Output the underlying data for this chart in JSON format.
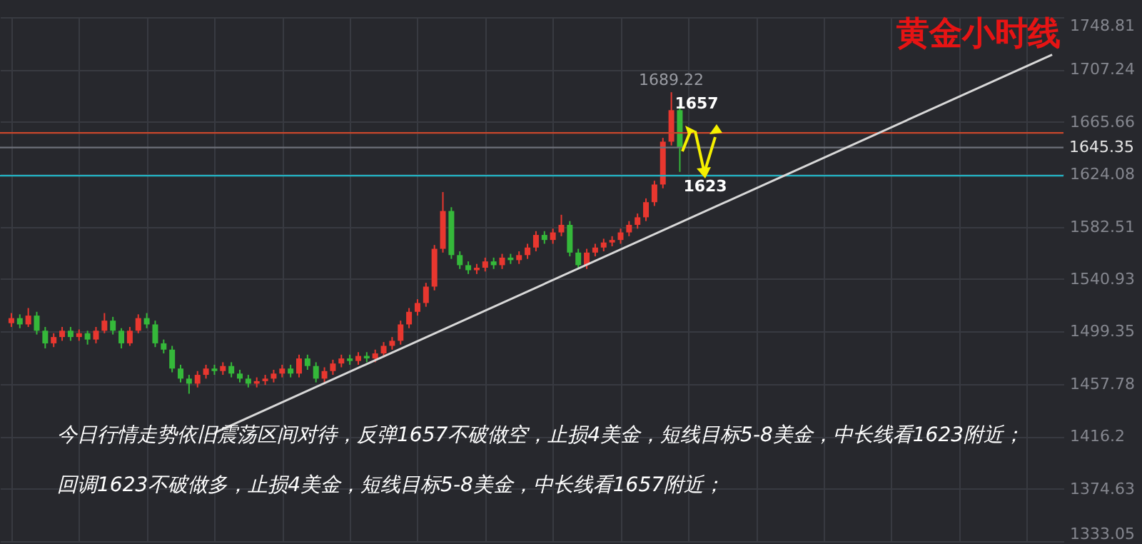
{
  "chart_data": {
    "type": "candlestick",
    "title": "黄金小时线",
    "categories": [
      null,
      null,
      null,
      null,
      null,
      null,
      null,
      null,
      null,
      null,
      null,
      null,
      null,
      null,
      null,
      null,
      null,
      null,
      null,
      null,
      null,
      null,
      null,
      null,
      null,
      null,
      null,
      null,
      null,
      null,
      null,
      null,
      null,
      null,
      null,
      null,
      null,
      null,
      null,
      null,
      null,
      null,
      null,
      null,
      null,
      null,
      null,
      null,
      null,
      null,
      null,
      null,
      null,
      null,
      null,
      null,
      null,
      null,
      null,
      null,
      null,
      null,
      null,
      null,
      null,
      null,
      null,
      null,
      null,
      null,
      null,
      null,
      null,
      null,
      null,
      null,
      null,
      null,
      null,
      null,
      null,
      null,
      null,
      null,
      null,
      null,
      null,
      null,
      null,
      null,
      null,
      null,
      null,
      null,
      null,
      null,
      null,
      null,
      null,
      null,
      null,
      null,
      null,
      null,
      null,
      null,
      null,
      null,
      null,
      null,
      null,
      null,
      null,
      null,
      null,
      null,
      null,
      null,
      null,
      null,
      null,
      null,
      null,
      null
    ],
    "ohlc": [
      [
        1506,
        1514,
        1503,
        1510
      ],
      [
        1510,
        1513,
        1502,
        1505
      ],
      [
        1505,
        1518,
        1503,
        1512
      ],
      [
        1512,
        1515,
        1497,
        1500
      ],
      [
        1500,
        1503,
        1486,
        1490
      ],
      [
        1490,
        1498,
        1487,
        1495
      ],
      [
        1495,
        1503,
        1492,
        1500
      ],
      [
        1500,
        1503,
        1492,
        1495
      ],
      [
        1495,
        1501,
        1492,
        1498
      ],
      [
        1498,
        1500,
        1489,
        1493
      ],
      [
        1493,
        1503,
        1490,
        1500
      ],
      [
        1500,
        1514,
        1498,
        1508
      ],
      [
        1508,
        1511,
        1497,
        1500
      ],
      [
        1500,
        1502,
        1486,
        1490
      ],
      [
        1490,
        1503,
        1488,
        1500
      ],
      [
        1500,
        1513,
        1498,
        1510
      ],
      [
        1510,
        1514,
        1502,
        1505
      ],
      [
        1505,
        1508,
        1487,
        1490
      ],
      [
        1490,
        1493,
        1482,
        1485
      ],
      [
        1485,
        1488,
        1467,
        1470
      ],
      [
        1470,
        1473,
        1459,
        1462
      ],
      [
        1462,
        1465,
        1450,
        1458
      ],
      [
        1458,
        1468,
        1455,
        1465
      ],
      [
        1465,
        1473,
        1462,
        1470
      ],
      [
        1470,
        1473,
        1465,
        1468
      ],
      [
        1468,
        1475,
        1465,
        1472
      ],
      [
        1472,
        1475,
        1463,
        1466
      ],
      [
        1466,
        1469,
        1459,
        1462
      ],
      [
        1462,
        1465,
        1455,
        1458
      ],
      [
        1458,
        1463,
        1455,
        1460
      ],
      [
        1460,
        1465,
        1457,
        1462
      ],
      [
        1462,
        1469,
        1459,
        1466
      ],
      [
        1466,
        1473,
        1463,
        1470
      ],
      [
        1470,
        1473,
        1463,
        1466
      ],
      [
        1466,
        1481,
        1463,
        1478
      ],
      [
        1478,
        1481,
        1469,
        1472
      ],
      [
        1472,
        1475,
        1459,
        1462
      ],
      [
        1462,
        1471,
        1459,
        1468
      ],
      [
        1468,
        1477,
        1465,
        1474
      ],
      [
        1474,
        1481,
        1471,
        1478
      ],
      [
        1478,
        1481,
        1473,
        1476
      ],
      [
        1476,
        1483,
        1473,
        1480
      ],
      [
        1480,
        1483,
        1475,
        1478
      ],
      [
        1478,
        1485,
        1475,
        1482
      ],
      [
        1482,
        1491,
        1479,
        1488
      ],
      [
        1488,
        1495,
        1485,
        1492
      ],
      [
        1492,
        1508,
        1489,
        1505
      ],
      [
        1505,
        1518,
        1502,
        1515
      ],
      [
        1515,
        1525,
        1512,
        1522
      ],
      [
        1522,
        1538,
        1519,
        1535
      ],
      [
        1535,
        1568,
        1532,
        1565
      ],
      [
        1565,
        1610,
        1562,
        1595
      ],
      [
        1595,
        1598,
        1557,
        1560
      ],
      [
        1560,
        1563,
        1549,
        1552
      ],
      [
        1552,
        1555,
        1545,
        1548
      ],
      [
        1548,
        1553,
        1545,
        1550
      ],
      [
        1550,
        1558,
        1547,
        1555
      ],
      [
        1555,
        1558,
        1549,
        1552
      ],
      [
        1552,
        1561,
        1549,
        1558
      ],
      [
        1558,
        1561,
        1553,
        1556
      ],
      [
        1556,
        1563,
        1553,
        1560
      ],
      [
        1560,
        1569,
        1557,
        1566
      ],
      [
        1566,
        1579,
        1563,
        1576
      ],
      [
        1576,
        1579,
        1569,
        1572
      ],
      [
        1572,
        1581,
        1569,
        1578
      ],
      [
        1578,
        1592,
        1575,
        1584
      ],
      [
        1584,
        1587,
        1559,
        1562
      ],
      [
        1562,
        1565,
        1549,
        1552
      ],
      [
        1552,
        1565,
        1549,
        1562
      ],
      [
        1562,
        1569,
        1559,
        1566
      ],
      [
        1566,
        1573,
        1563,
        1570
      ],
      [
        1570,
        1575,
        1567,
        1572
      ],
      [
        1572,
        1581,
        1569,
        1578
      ],
      [
        1578,
        1587,
        1575,
        1584
      ],
      [
        1584,
        1593,
        1581,
        1590
      ],
      [
        1590,
        1605,
        1587,
        1602
      ],
      [
        1602,
        1619,
        1599,
        1616
      ],
      [
        1616,
        1653,
        1613,
        1650
      ],
      [
        1650,
        1689.22,
        1647,
        1675
      ],
      [
        1675,
        1678,
        1626,
        1645.35
      ],
      null,
      null,
      null,
      null,
      null,
      null,
      null,
      null,
      null,
      null,
      null,
      null,
      null,
      null,
      null,
      null,
      null,
      null,
      null,
      null,
      null,
      null,
      null,
      null,
      null,
      null,
      null,
      null,
      null,
      null,
      null,
      null,
      null,
      null,
      null,
      null,
      null,
      null,
      null,
      null,
      null,
      null,
      null,
      null
    ],
    "colors": [
      "#e8372f",
      "#35b83a",
      "#e8372f",
      "#35b83a",
      "#35b83a",
      "#e8372f",
      "#e8372f",
      "#35b83a",
      "#e8372f",
      "#35b83a",
      "#e8372f",
      "#e8372f",
      "#35b83a",
      "#35b83a",
      "#e8372f",
      "#e8372f",
      "#35b83a",
      "#35b83a",
      "#35b83a",
      "#35b83a",
      "#35b83a",
      "#35b83a",
      "#e8372f",
      "#e8372f",
      "#35b83a",
      "#e8372f",
      "#35b83a",
      "#35b83a",
      "#35b83a",
      "#e8372f",
      "#e8372f",
      "#e8372f",
      "#e8372f",
      "#35b83a",
      "#e8372f",
      "#35b83a",
      "#35b83a",
      "#e8372f",
      "#e8372f",
      "#e8372f",
      "#35b83a",
      "#e8372f",
      "#35b83a",
      "#e8372f",
      "#e8372f",
      "#e8372f",
      "#e8372f",
      "#e8372f",
      "#e8372f",
      "#e8372f",
      "#e8372f",
      "#e8372f",
      "#35b83a",
      "#35b83a",
      "#35b83a",
      "#e8372f",
      "#e8372f",
      "#35b83a",
      "#e8372f",
      "#35b83a",
      "#e8372f",
      "#e8372f",
      "#e8372f",
      "#35b83a",
      "#e8372f",
      "#e8372f",
      "#35b83a",
      "#35b83a",
      "#e8372f",
      "#e8372f",
      "#e8372f",
      "#e8372f",
      "#e8372f",
      "#e8372f",
      "#e8372f",
      "#e8372f",
      "#e8372f",
      "#e8372f",
      "#e8372f",
      "#35b83a",
      null,
      null,
      null,
      null,
      null,
      null,
      null,
      null,
      null,
      null,
      null,
      null,
      null,
      null,
      null,
      null,
      null,
      null,
      null,
      null,
      null,
      null,
      null,
      null,
      null,
      null,
      null,
      null,
      null,
      null,
      null,
      null,
      null,
      null,
      null,
      null,
      null,
      null,
      null,
      null,
      null,
      null,
      null,
      null
    ],
    "series": [
      {
        "type": "line",
        "color": "#d8d8d8",
        "values": [
          null,
          null,
          null,
          null,
          null,
          null,
          null,
          null,
          null,
          null,
          null,
          null,
          null,
          null,
          null,
          null,
          null,
          null,
          null,
          null,
          null,
          null,
          null,
          null,
          1419,
          null,
          null,
          null,
          null,
          null,
          null,
          null,
          null,
          null,
          null,
          null,
          null,
          null,
          null,
          null,
          null,
          null,
          null,
          null,
          null,
          null,
          null,
          null,
          null,
          null,
          null,
          null,
          null,
          null,
          null,
          null,
          null,
          null,
          null,
          null,
          null,
          null,
          null,
          null,
          null,
          null,
          null,
          null,
          null,
          null,
          null,
          null,
          null,
          null,
          null,
          null,
          null,
          null,
          null,
          null,
          null,
          null,
          null,
          null,
          null,
          null,
          null,
          null,
          null,
          null,
          null,
          null,
          null,
          null,
          null,
          null,
          null,
          null,
          null,
          null,
          null,
          null,
          null,
          null,
          null,
          null,
          null,
          null,
          null,
          null,
          null,
          null,
          null,
          null,
          null,
          null,
          null,
          null,
          null,
          null,
          null,
          null,
          null,
          1719
        ]
      }
    ],
    "ylim": [
      1333.05,
      1748.81
    ],
    "yticks": [
      1333.05,
      1374.63,
      1416.2,
      1457.78,
      1499.35,
      1540.93,
      1582.51,
      1624.08,
      1665.66,
      1707.24,
      1748.81
    ],
    "tick_labels": "y",
    "grid": true,
    "ref_lines": [
      {
        "axis": "y",
        "value": 1657,
        "color": "#c8462c"
      },
      {
        "axis": "y",
        "value": 1645.35,
        "label": "1645.35",
        "color": "#6e717a"
      },
      {
        "axis": "y",
        "value": 1623,
        "color": "#22b4c4"
      }
    ],
    "annotations": [
      {
        "text": "1689.22",
        "y": 1689.22
      },
      {
        "text": "1657",
        "y": 1657
      },
      {
        "text": "1623",
        "y": 1623
      },
      "今日行情走势依旧震荡区间对待，反弹1657不破做空，止损4美金，短线目标5-8美金，中长线看1623附近；",
      "回调1623不破做多，止损4美金，短线目标5-8美金，中长线看1657附近；"
    ]
  }
}
